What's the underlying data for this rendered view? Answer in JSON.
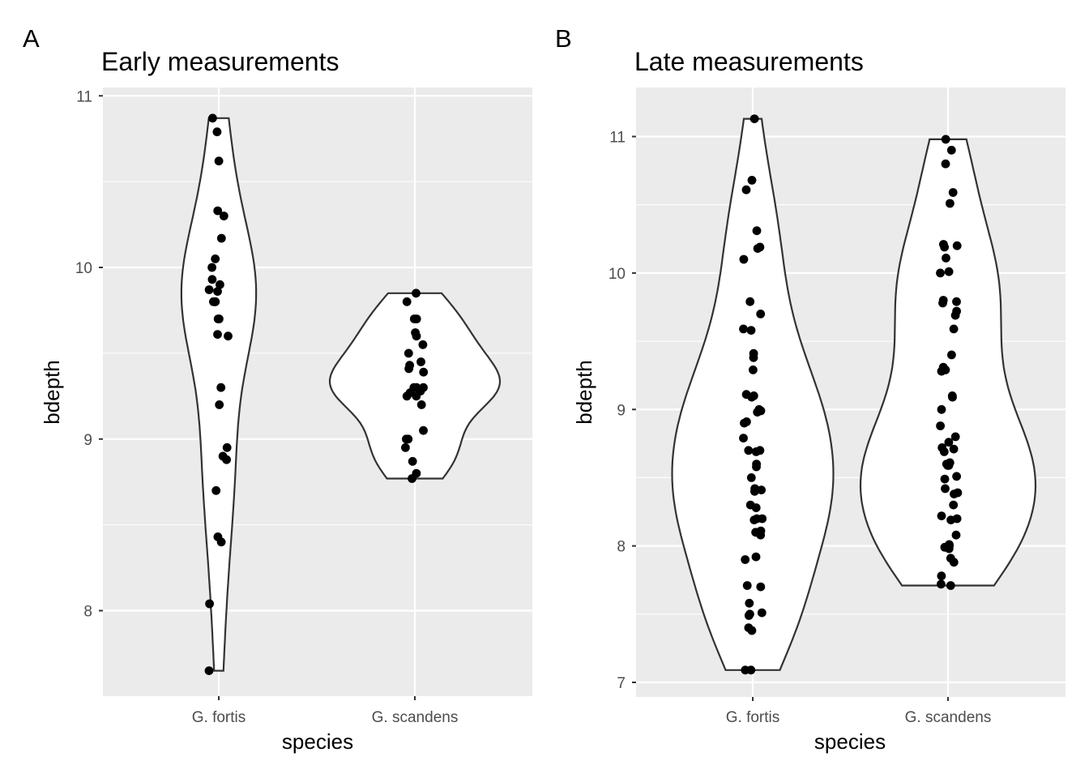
{
  "chart_data": [
    {
      "type": "violin",
      "panel_tag": "A",
      "title": "Early measurements",
      "xlabel": "species",
      "ylabel": "bdepth",
      "categories": [
        "G. fortis",
        "G. scandens"
      ],
      "ylim": [
        7.5,
        11.05
      ],
      "yticks": [
        8,
        9,
        10,
        11
      ],
      "grid": true,
      "series": [
        {
          "category": "G. fortis",
          "points": [
            10.87,
            10.79,
            10.62,
            10.33,
            10.3,
            10.17,
            10.05,
            10.0,
            9.93,
            9.9,
            9.87,
            9.86,
            9.8,
            9.8,
            9.8,
            9.7,
            9.7,
            9.61,
            9.6,
            9.3,
            9.2,
            8.95,
            8.9,
            8.88,
            8.7,
            8.43,
            8.4,
            8.04,
            7.65
          ]
        },
        {
          "category": "G. scandens",
          "points": [
            9.85,
            9.8,
            9.7,
            9.7,
            9.62,
            9.6,
            9.55,
            9.5,
            9.45,
            9.43,
            9.41,
            9.39,
            9.3,
            9.3,
            9.3,
            9.28,
            9.27,
            9.25,
            9.25,
            9.2,
            9.05,
            9.0,
            9.0,
            8.95,
            8.87,
            8.8,
            8.77
          ]
        }
      ]
    },
    {
      "type": "violin",
      "panel_tag": "B",
      "title": "Late measurements",
      "xlabel": "species",
      "ylabel": "bdepth",
      "categories": [
        "G. fortis",
        "G. scandens"
      ],
      "ylim": [
        6.9,
        11.35
      ],
      "yticks": [
        7,
        8,
        9,
        10,
        11
      ],
      "grid": true,
      "series": [
        {
          "category": "G. fortis",
          "points": [
            11.13,
            10.68,
            10.61,
            10.31,
            10.19,
            10.18,
            10.1,
            9.79,
            9.7,
            9.59,
            9.58,
            9.41,
            9.38,
            9.29,
            9.11,
            9.1,
            9.09,
            9.0,
            8.99,
            8.98,
            8.91,
            8.9,
            8.79,
            8.7,
            8.7,
            8.69,
            8.6,
            8.58,
            8.5,
            8.42,
            8.41,
            8.4,
            8.3,
            8.28,
            8.2,
            8.2,
            8.19,
            8.11,
            8.1,
            8.08,
            7.92,
            7.9,
            7.71,
            7.7,
            7.58,
            7.51,
            7.5,
            7.49,
            7.4,
            7.38,
            7.09,
            7.09
          ]
        },
        {
          "category": "G. scandens",
          "points": [
            10.98,
            10.9,
            10.8,
            10.59,
            10.51,
            10.21,
            10.2,
            10.19,
            10.11,
            10.01,
            10.0,
            9.8,
            9.79,
            9.78,
            9.72,
            9.69,
            9.59,
            9.4,
            9.31,
            9.29,
            9.28,
            9.1,
            9.09,
            9.0,
            8.88,
            8.8,
            8.76,
            8.72,
            8.71,
            8.69,
            8.61,
            8.6,
            8.59,
            8.59,
            8.51,
            8.49,
            8.42,
            8.39,
            8.38,
            8.3,
            8.22,
            8.2,
            8.19,
            8.08,
            8.01,
            8.0,
            7.99,
            7.98,
            7.91,
            7.88,
            7.78,
            7.72,
            7.71
          ]
        }
      ]
    }
  ]
}
